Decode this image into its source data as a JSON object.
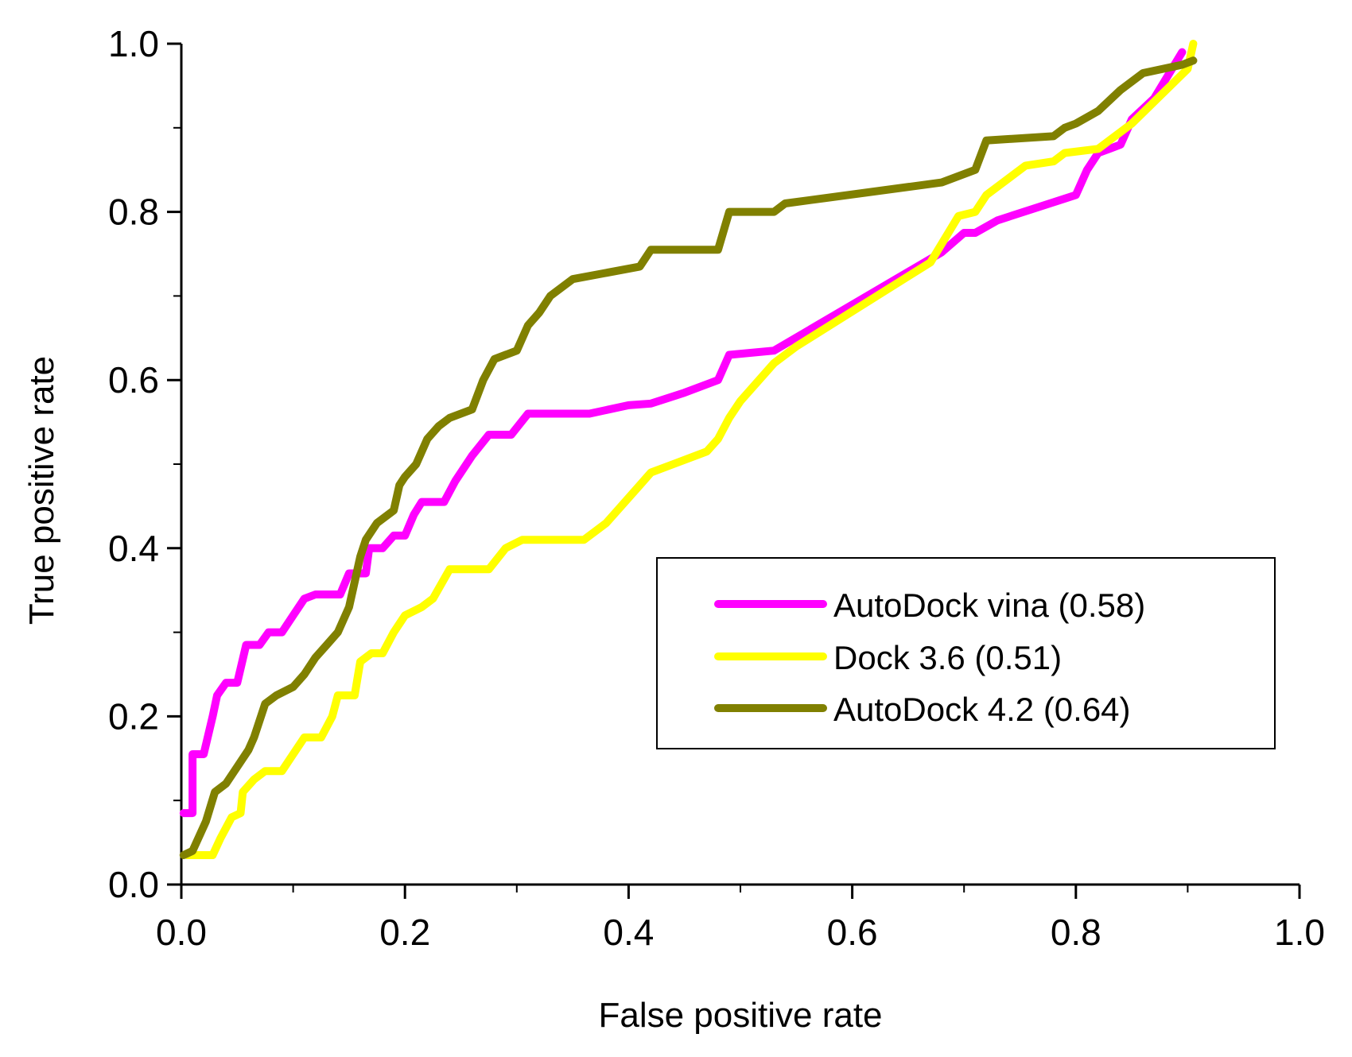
{
  "chart_data": {
    "type": "line",
    "xlabel": "False positive rate",
    "ylabel": "True positive rate",
    "xlim": [
      0,
      1
    ],
    "ylim": [
      0,
      1
    ],
    "xticks": [
      "0.0",
      "0.2",
      "0.4",
      "0.6",
      "0.8",
      "1.0"
    ],
    "yticks": [
      "0.0",
      "0.2",
      "0.4",
      "0.6",
      "0.8",
      "1.0"
    ],
    "grid": false,
    "legend_position": "lower-right",
    "series": [
      {
        "name": "AutoDock vina (0.58)",
        "color": "#ff00ff",
        "points": [
          [
            0.002,
            0.085
          ],
          [
            0.01,
            0.085
          ],
          [
            0.01,
            0.155
          ],
          [
            0.02,
            0.155
          ],
          [
            0.028,
            0.2
          ],
          [
            0.032,
            0.225
          ],
          [
            0.04,
            0.24
          ],
          [
            0.05,
            0.24
          ],
          [
            0.058,
            0.285
          ],
          [
            0.07,
            0.285
          ],
          [
            0.078,
            0.3
          ],
          [
            0.09,
            0.3
          ],
          [
            0.1,
            0.32
          ],
          [
            0.11,
            0.34
          ],
          [
            0.12,
            0.345
          ],
          [
            0.13,
            0.345
          ],
          [
            0.142,
            0.345
          ],
          [
            0.15,
            0.37
          ],
          [
            0.165,
            0.37
          ],
          [
            0.168,
            0.4
          ],
          [
            0.18,
            0.4
          ],
          [
            0.19,
            0.415
          ],
          [
            0.2,
            0.415
          ],
          [
            0.208,
            0.44
          ],
          [
            0.215,
            0.455
          ],
          [
            0.235,
            0.455
          ],
          [
            0.245,
            0.48
          ],
          [
            0.26,
            0.51
          ],
          [
            0.275,
            0.535
          ],
          [
            0.295,
            0.535
          ],
          [
            0.31,
            0.56
          ],
          [
            0.365,
            0.56
          ],
          [
            0.4,
            0.57
          ],
          [
            0.42,
            0.572
          ],
          [
            0.45,
            0.585
          ],
          [
            0.48,
            0.6
          ],
          [
            0.49,
            0.63
          ],
          [
            0.53,
            0.635
          ],
          [
            0.68,
            0.752
          ],
          [
            0.7,
            0.775
          ],
          [
            0.71,
            0.775
          ],
          [
            0.73,
            0.79
          ],
          [
            0.8,
            0.82
          ],
          [
            0.81,
            0.85
          ],
          [
            0.82,
            0.87
          ],
          [
            0.84,
            0.88
          ],
          [
            0.85,
            0.91
          ],
          [
            0.87,
            0.935
          ],
          [
            0.895,
            0.99
          ]
        ]
      },
      {
        "name": "Dock 3.6 (0.51)",
        "color": "#ffff00",
        "points": [
          [
            0.005,
            0.035
          ],
          [
            0.028,
            0.035
          ],
          [
            0.035,
            0.055
          ],
          [
            0.045,
            0.08
          ],
          [
            0.053,
            0.085
          ],
          [
            0.055,
            0.11
          ],
          [
            0.065,
            0.125
          ],
          [
            0.075,
            0.135
          ],
          [
            0.09,
            0.135
          ],
          [
            0.1,
            0.155
          ],
          [
            0.11,
            0.175
          ],
          [
            0.125,
            0.175
          ],
          [
            0.135,
            0.2
          ],
          [
            0.14,
            0.225
          ],
          [
            0.155,
            0.225
          ],
          [
            0.16,
            0.265
          ],
          [
            0.17,
            0.275
          ],
          [
            0.18,
            0.275
          ],
          [
            0.19,
            0.3
          ],
          [
            0.2,
            0.32
          ],
          [
            0.215,
            0.33
          ],
          [
            0.225,
            0.34
          ],
          [
            0.24,
            0.375
          ],
          [
            0.275,
            0.375
          ],
          [
            0.29,
            0.4
          ],
          [
            0.305,
            0.41
          ],
          [
            0.36,
            0.41
          ],
          [
            0.38,
            0.43
          ],
          [
            0.41,
            0.475
          ],
          [
            0.42,
            0.49
          ],
          [
            0.44,
            0.5
          ],
          [
            0.47,
            0.515
          ],
          [
            0.48,
            0.53
          ],
          [
            0.49,
            0.555
          ],
          [
            0.5,
            0.575
          ],
          [
            0.53,
            0.62
          ],
          [
            0.55,
            0.64
          ],
          [
            0.67,
            0.74
          ],
          [
            0.695,
            0.795
          ],
          [
            0.71,
            0.8
          ],
          [
            0.72,
            0.82
          ],
          [
            0.755,
            0.855
          ],
          [
            0.78,
            0.86
          ],
          [
            0.79,
            0.87
          ],
          [
            0.82,
            0.875
          ],
          [
            0.84,
            0.895
          ],
          [
            0.85,
            0.905
          ],
          [
            0.9,
            0.97
          ],
          [
            0.905,
            1.0
          ]
        ]
      },
      {
        "name": "AutoDock 4.2 (0.64)",
        "color": "#808000",
        "points": [
          [
            0.002,
            0.035
          ],
          [
            0.01,
            0.04
          ],
          [
            0.022,
            0.075
          ],
          [
            0.03,
            0.11
          ],
          [
            0.04,
            0.12
          ],
          [
            0.05,
            0.14
          ],
          [
            0.06,
            0.16
          ],
          [
            0.065,
            0.175
          ],
          [
            0.075,
            0.215
          ],
          [
            0.085,
            0.225
          ],
          [
            0.1,
            0.235
          ],
          [
            0.11,
            0.25
          ],
          [
            0.12,
            0.27
          ],
          [
            0.13,
            0.285
          ],
          [
            0.14,
            0.3
          ],
          [
            0.15,
            0.33
          ],
          [
            0.16,
            0.39
          ],
          [
            0.165,
            0.41
          ],
          [
            0.175,
            0.43
          ],
          [
            0.19,
            0.445
          ],
          [
            0.195,
            0.475
          ],
          [
            0.2,
            0.485
          ],
          [
            0.21,
            0.5
          ],
          [
            0.22,
            0.53
          ],
          [
            0.23,
            0.545
          ],
          [
            0.24,
            0.555
          ],
          [
            0.26,
            0.565
          ],
          [
            0.27,
            0.6
          ],
          [
            0.28,
            0.625
          ],
          [
            0.3,
            0.635
          ],
          [
            0.31,
            0.665
          ],
          [
            0.32,
            0.68
          ],
          [
            0.33,
            0.7
          ],
          [
            0.35,
            0.72
          ],
          [
            0.41,
            0.735
          ],
          [
            0.42,
            0.755
          ],
          [
            0.48,
            0.755
          ],
          [
            0.49,
            0.8
          ],
          [
            0.53,
            0.8
          ],
          [
            0.54,
            0.81
          ],
          [
            0.68,
            0.835
          ],
          [
            0.71,
            0.85
          ],
          [
            0.72,
            0.885
          ],
          [
            0.78,
            0.89
          ],
          [
            0.79,
            0.9
          ],
          [
            0.8,
            0.905
          ],
          [
            0.82,
            0.92
          ],
          [
            0.84,
            0.945
          ],
          [
            0.86,
            0.965
          ],
          [
            0.895,
            0.975
          ],
          [
            0.905,
            0.98
          ]
        ]
      }
    ]
  }
}
